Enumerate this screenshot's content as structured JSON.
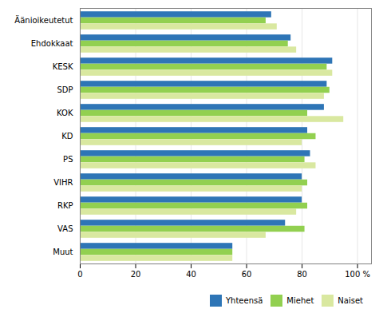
{
  "chart_data": {
    "type": "bar",
    "orientation": "horizontal",
    "categories": [
      "Muut",
      "VAS",
      "RKP",
      "VIHR",
      "PS",
      "KD",
      "KOK",
      "SDP",
      "KESK",
      "Ehdokkaat",
      "Äänioikeutetut"
    ],
    "series": [
      {
        "name": "Yhteensä",
        "color": "#2e75b6",
        "values": [
          55,
          74,
          80,
          80,
          83,
          82,
          88,
          89,
          91,
          76,
          69
        ]
      },
      {
        "name": "Miehet",
        "color": "#92d050",
        "values": [
          55,
          81,
          82,
          82,
          81,
          85,
          82,
          90,
          89,
          75,
          67
        ]
      },
      {
        "name": "Naiset",
        "color": "#d9e8a0",
        "values": [
          55,
          67,
          78,
          80,
          85,
          80,
          95,
          88,
          91,
          78,
          71
        ]
      }
    ],
    "xlim": [
      0,
      105
    ],
    "xticks": [
      0,
      20,
      40,
      60,
      80,
      {
        "value": 100,
        "label": "100 %"
      }
    ],
    "grid": true,
    "legend": "lower right"
  }
}
